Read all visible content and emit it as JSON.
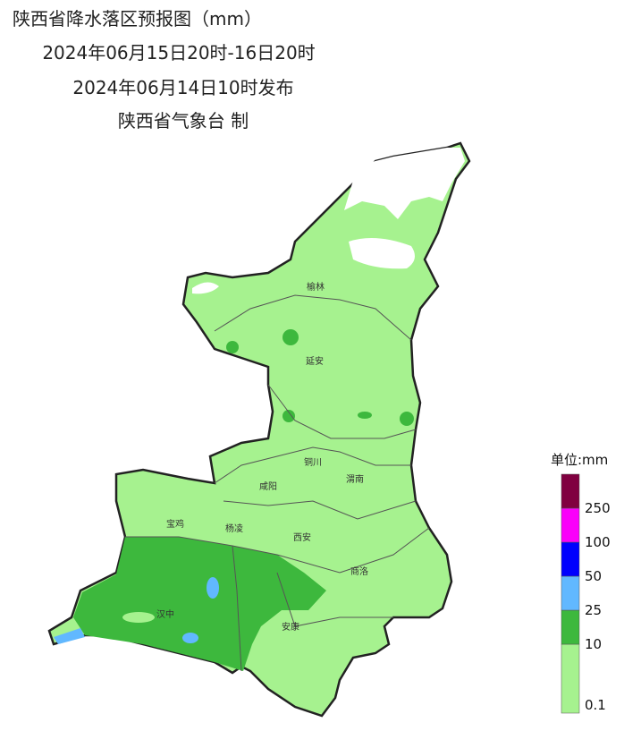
{
  "header": {
    "title": "陕西省降水落区预报图（mm）",
    "period": "2024年06月15日20时-16日20时",
    "issued": "2024年06月14日10时发布",
    "publisher": "陕西省气象台 制"
  },
  "cities": [
    "榆林",
    "延安",
    "铜川",
    "渭南",
    "咸阳",
    "宝鸡",
    "杨凌",
    "西安",
    "商洛",
    "汉中",
    "安康"
  ],
  "legend": {
    "unit": "单位:mm",
    "levels": [
      {
        "value": 0.1,
        "color": "#a6f28f"
      },
      {
        "value": 10,
        "color": "#3db83d"
      },
      {
        "value": 25,
        "color": "#61b8ff"
      },
      {
        "value": 50,
        "color": "#0000fe"
      },
      {
        "value": 100,
        "color": "#fa00fa"
      },
      {
        "value": 250,
        "color": "#800040"
      }
    ]
  }
}
